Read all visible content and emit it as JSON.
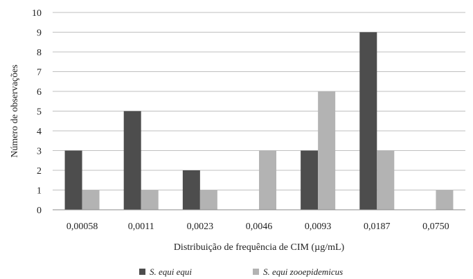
{
  "chart_data": {
    "type": "bar",
    "categories": [
      "0,00058",
      "0,0011",
      "0,0023",
      "0,0046",
      "0,0093",
      "0,0187",
      "0,0750"
    ],
    "series": [
      {
        "name": "S. equi equi",
        "values": [
          3,
          5,
          2,
          0,
          3,
          9,
          0
        ],
        "color": "#4d4d4d"
      },
      {
        "name": "S. equi zooepidemicus",
        "values": [
          1,
          1,
          1,
          3,
          6,
          3,
          1
        ],
        "color": "#b3b3b3"
      }
    ],
    "title": "",
    "xlabel": "Distribuição de frequência de CIM (µg/mL)",
    "ylabel": "Número de observações",
    "ylim": [
      0,
      10
    ],
    "yticks": [
      0,
      1,
      2,
      3,
      4,
      5,
      6,
      7,
      8,
      9,
      10
    ],
    "grid": true,
    "legend_position": "bottom"
  }
}
